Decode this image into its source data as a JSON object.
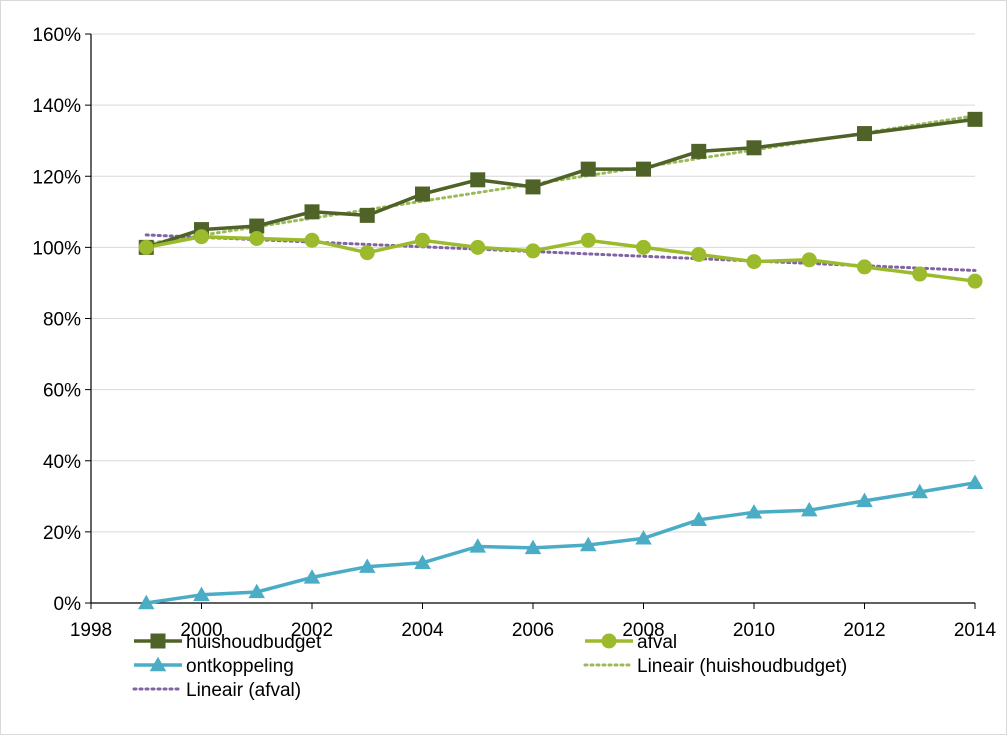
{
  "chart_data": {
    "type": "line",
    "title": "",
    "xlabel": "",
    "ylabel": "",
    "xlim": [
      1998,
      2014
    ],
    "ylim": [
      0,
      160
    ],
    "x_ticks": [
      "1998",
      "2000",
      "2002",
      "2004",
      "2006",
      "2008",
      "2010",
      "2012",
      "2014"
    ],
    "y_ticks": [
      "0%",
      "20%",
      "40%",
      "60%",
      "80%",
      "100%",
      "120%",
      "140%",
      "160%"
    ],
    "grid": "horizontal",
    "legend_position": "bottom",
    "x": [
      1999,
      2000,
      2001,
      2002,
      2003,
      2004,
      2005,
      2006,
      2007,
      2008,
      2009,
      2010,
      2011,
      2012,
      2013,
      2014
    ],
    "series": [
      {
        "name": "huishoudbudget",
        "color": "#4f6228",
        "marker": "square",
        "values": [
          100,
          105,
          106,
          110,
          109,
          115,
          119,
          117,
          122,
          122,
          127,
          128,
          null,
          132,
          null,
          136
        ]
      },
      {
        "name": "afval",
        "color": "#9bbb2d",
        "marker": "circle",
        "values": [
          100,
          103,
          102.5,
          102,
          98.5,
          102,
          100,
          99,
          102,
          100,
          98,
          96,
          96.5,
          94.5,
          92.5,
          90.5
        ]
      },
      {
        "name": "ontkoppeling",
        "color": "#4bacc6",
        "marker": "triangle",
        "values": [
          0,
          2.3,
          3.1,
          7.2,
          10.2,
          11.3,
          15.9,
          15.5,
          16.3,
          18.2,
          23.4,
          25.5,
          26.1,
          28.7,
          31.2,
          33.8
        ]
      }
    ],
    "trendlines": [
      {
        "name": "Lineair (huishoudbudget)",
        "color": "#9bbb59",
        "of": "huishoudbudget",
        "start": [
          1999,
          101
        ],
        "end": [
          2014,
          137
        ]
      },
      {
        "name": "Lineair (afval)",
        "color": "#8064a2",
        "of": "afval",
        "start": [
          1999,
          103.5
        ],
        "end": [
          2014,
          93.5
        ]
      }
    ]
  }
}
